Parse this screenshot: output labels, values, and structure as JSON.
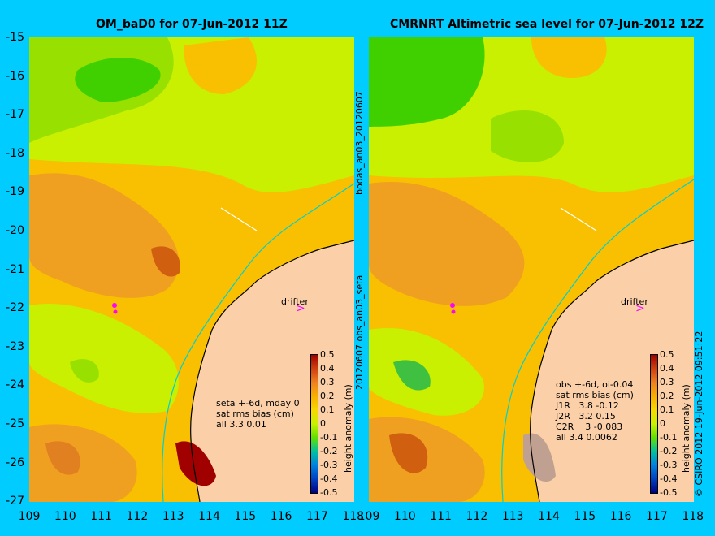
{
  "left_panel": {
    "title": "OM_baD0 for 07-Jun-2012 11Z",
    "stats": [
      "seta +-6d, mday 0",
      "sat rms bias (cm)",
      "all 3.3 0.01"
    ],
    "drifter_label": "drifter"
  },
  "right_panel": {
    "title": "CMRNRT Altimetric sea level  for 07-Jun-2012 12Z",
    "stats": [
      "obs +-6d, oi-0.04",
      "sat rms bias (cm)",
      "J1R   3.8 -0.12",
      "J2R   3.2 0.15",
      "C2R    3 -0.083",
      "all 3.4 0.0062"
    ],
    "drifter_label": "drifter"
  },
  "y_axis_ticks": [
    "-15",
    "-16",
    "-17",
    "-18",
    "-19",
    "-20",
    "-21",
    "-22",
    "-23",
    "-24",
    "-25",
    "-26",
    "-27"
  ],
  "x_axis_ticks": [
    "109",
    "110",
    "111",
    "112",
    "113",
    "114",
    "115",
    "116",
    "117",
    "118"
  ],
  "colorbar": {
    "ticks": [
      "0.5",
      "0.4",
      "0.3",
      "0.2",
      "0.1",
      "0",
      "-0.1",
      "-0.2",
      "-0.3",
      "-0.4",
      "-0.5"
    ],
    "label": "height anomaly (m)"
  },
  "middle_labels": [
    "bodas_an03_20120607",
    "20120607 obs_an03_seta"
  ],
  "credit": "© CSIRO 2012   19-Jun-2012 09:51:22",
  "colors": {
    "background": "#00ccff",
    "land": "#fbd0a8",
    "sea_low": "#c8f000",
    "sea_mid": "#f8c000",
    "sea_high": "#f0a020"
  }
}
